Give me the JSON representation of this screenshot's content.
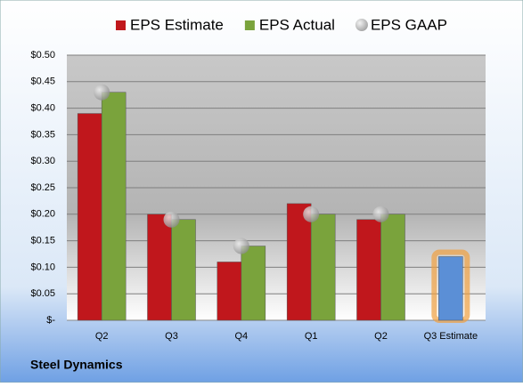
{
  "chart_data": {
    "type": "bar",
    "title": "Steel Dynamics",
    "categories": [
      "Q2",
      "Q3",
      "Q4",
      "Q1",
      "Q2",
      "Q3 Estimate"
    ],
    "series": [
      {
        "name": "EPS Estimate",
        "color": "#c0171c",
        "values": [
          0.39,
          0.2,
          0.11,
          0.22,
          0.19,
          0.12
        ],
        "point_colors": [
          null,
          null,
          null,
          null,
          null,
          "#5b8fd6"
        ]
      },
      {
        "name": "EPS Actual",
        "color": "#7aa33c",
        "values": [
          0.43,
          0.19,
          0.14,
          0.2,
          0.2,
          null
        ]
      },
      {
        "name": "EPS GAAP",
        "color": "#a6a6a6",
        "type": "scatter",
        "values": [
          0.43,
          0.19,
          0.14,
          0.2,
          0.2,
          null
        ]
      }
    ],
    "ylim": [
      0,
      0.5
    ],
    "yticks": [
      {
        "value": 0,
        "label": "$-"
      },
      {
        "value": 0.05,
        "label": "$0.05"
      },
      {
        "value": 0.1,
        "label": "$0.10"
      },
      {
        "value": 0.15,
        "label": "$0.15"
      },
      {
        "value": 0.2,
        "label": "$0.20"
      },
      {
        "value": 0.25,
        "label": "$0.25"
      },
      {
        "value": 0.3,
        "label": "$0.30"
      },
      {
        "value": 0.35,
        "label": "$0.35"
      },
      {
        "value": 0.4,
        "label": "$0.40"
      },
      {
        "value": 0.45,
        "label": "$0.45"
      },
      {
        "value": 0.5,
        "label": "$0.50"
      }
    ],
    "grid": true,
    "legend": "top"
  }
}
